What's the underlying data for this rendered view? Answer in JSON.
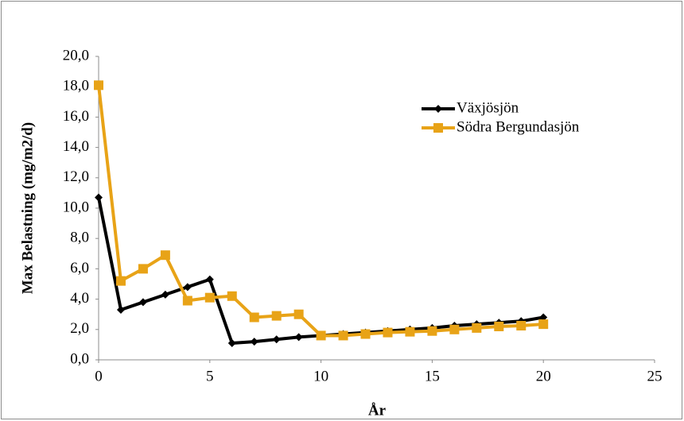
{
  "chart_data": {
    "type": "line",
    "x_label": "År",
    "y_label": "Max Belastning  (mg/m2/d)",
    "x": [
      0,
      1,
      2,
      3,
      4,
      5,
      6,
      7,
      8,
      9,
      10,
      11,
      12,
      13,
      14,
      15,
      16,
      17,
      18,
      19,
      20
    ],
    "series": [
      {
        "name": "Växjösjön",
        "color": "#000000",
        "marker": "diamond",
        "values": [
          10.7,
          3.3,
          3.8,
          4.3,
          4.8,
          5.3,
          1.1,
          1.2,
          1.35,
          1.5,
          1.6,
          1.7,
          1.8,
          1.9,
          2.0,
          2.1,
          2.25,
          2.35,
          2.45,
          2.55,
          2.8
        ]
      },
      {
        "name": "Södra Bergundasjön",
        "color": "#E8A317",
        "marker": "square",
        "values": [
          18.1,
          5.2,
          6.0,
          6.9,
          3.9,
          4.1,
          4.2,
          2.8,
          2.9,
          3.0,
          1.6,
          1.6,
          1.7,
          1.8,
          1.85,
          1.9,
          2.0,
          2.1,
          2.2,
          2.25,
          2.35
        ]
      }
    ],
    "xlim": [
      0,
      25
    ],
    "xticks": [
      0,
      5,
      10,
      15,
      20,
      25
    ],
    "ylim": [
      0,
      20
    ],
    "yticks": [
      {
        "value": 0,
        "label": "0,0"
      },
      {
        "value": 2,
        "label": "2,0"
      },
      {
        "value": 4,
        "label": "4,0"
      },
      {
        "value": 6,
        "label": "6,0"
      },
      {
        "value": 8,
        "label": "8,0"
      },
      {
        "value": 10,
        "label": "10,0"
      },
      {
        "value": 12,
        "label": "12,0"
      },
      {
        "value": 14,
        "label": "14,0"
      },
      {
        "value": 16,
        "label": "16,0"
      },
      {
        "value": 18,
        "label": "18,0"
      },
      {
        "value": 20,
        "label": "20,0"
      }
    ],
    "grid": false,
    "legend": "upper right"
  }
}
